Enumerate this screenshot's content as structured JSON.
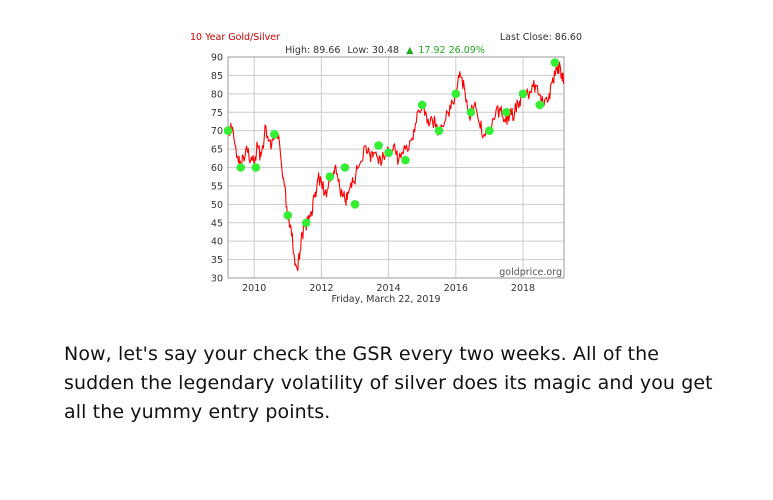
{
  "chart_data": {
    "type": "line",
    "title": "10 Year Gold/Silver",
    "last_close": "Last Close: 86.60",
    "stats": {
      "high": "High: 89.66",
      "low": "Low: 30.48",
      "change_arrow": "▲",
      "change": "17.92 26.09%"
    },
    "date_label": "Friday, March 22, 2019",
    "watermark": "goldprice.org",
    "xlim": [
      2009.22,
      2019.22
    ],
    "ylim": [
      30,
      90
    ],
    "y_ticks": [
      30,
      35,
      40,
      45,
      50,
      55,
      60,
      65,
      70,
      75,
      80,
      85,
      90
    ],
    "x_ticks": [
      2010,
      2012,
      2014,
      2016,
      2018
    ],
    "grid": true,
    "colors": {
      "line": "#ff0000",
      "marker": "#33ee33",
      "title": "#cc0000",
      "change": "#22aa22"
    },
    "series": [
      {
        "x": [
          2009.22,
          2009.35,
          2009.5,
          2009.6,
          2009.75,
          2009.9,
          2010.0,
          2010.1,
          2010.2,
          2010.35,
          2010.5,
          2010.6,
          2010.75,
          2010.9,
          2011.0,
          2011.1,
          2011.2,
          2011.3,
          2011.4,
          2011.5,
          2011.6,
          2011.7,
          2011.8,
          2011.9,
          2012.0,
          2012.15,
          2012.3,
          2012.4,
          2012.55,
          2012.7,
          2012.8,
          2012.95,
          2013.1,
          2013.3,
          2013.45,
          2013.55,
          2013.7,
          2013.85,
          2014.0,
          2014.15,
          2014.3,
          2014.5,
          2014.7,
          2014.85,
          2015.0,
          2015.15,
          2015.3,
          2015.5,
          2015.7,
          2015.85,
          2016.0,
          2016.12,
          2016.25,
          2016.4,
          2016.55,
          2016.7,
          2016.85,
          2017.0,
          2017.15,
          2017.3,
          2017.45,
          2017.6,
          2017.75,
          2017.9,
          2018.0,
          2018.15,
          2018.3,
          2018.45,
          2018.6,
          2018.75,
          2018.85,
          2018.95,
          2019.05,
          2019.15,
          2019.22
        ],
        "values": [
          70,
          71,
          63,
          60,
          65,
          62,
          61,
          66,
          63,
          71,
          65,
          68,
          67,
          55,
          47,
          43,
          35,
          32,
          41,
          44,
          45,
          48,
          52,
          57,
          56,
          52,
          58,
          60,
          54,
          51,
          53,
          56,
          60,
          66,
          63,
          64,
          61,
          63,
          64,
          66,
          62,
          65,
          68,
          75,
          77,
          72,
          73,
          70,
          73,
          76,
          80,
          86,
          82,
          74,
          77,
          72,
          69,
          70,
          73,
          76,
          73,
          74,
          75,
          78,
          79,
          80,
          82,
          80,
          77,
          78,
          83,
          85,
          88,
          85,
          83
        ]
      }
    ],
    "entry_points": [
      {
        "x": 2009.22,
        "y": 70
      },
      {
        "x": 2009.6,
        "y": 60
      },
      {
        "x": 2010.05,
        "y": 60
      },
      {
        "x": 2010.6,
        "y": 69
      },
      {
        "x": 2011.0,
        "y": 47
      },
      {
        "x": 2011.55,
        "y": 45
      },
      {
        "x": 2012.25,
        "y": 57.5
      },
      {
        "x": 2012.7,
        "y": 60
      },
      {
        "x": 2013.0,
        "y": 50
      },
      {
        "x": 2013.7,
        "y": 66
      },
      {
        "x": 2014.0,
        "y": 64
      },
      {
        "x": 2014.5,
        "y": 62
      },
      {
        "x": 2015.0,
        "y": 77
      },
      {
        "x": 2015.5,
        "y": 70
      },
      {
        "x": 2016.0,
        "y": 80
      },
      {
        "x": 2016.45,
        "y": 75
      },
      {
        "x": 2017.0,
        "y": 70
      },
      {
        "x": 2017.5,
        "y": 75
      },
      {
        "x": 2018.0,
        "y": 80
      },
      {
        "x": 2018.5,
        "y": 77
      },
      {
        "x": 2018.95,
        "y": 88.5
      }
    ]
  },
  "caption": "Now, let's say your check the GSR every two weeks. All of the sudden the legendary volatility of silver does its magic and you get all the yummy entry points."
}
